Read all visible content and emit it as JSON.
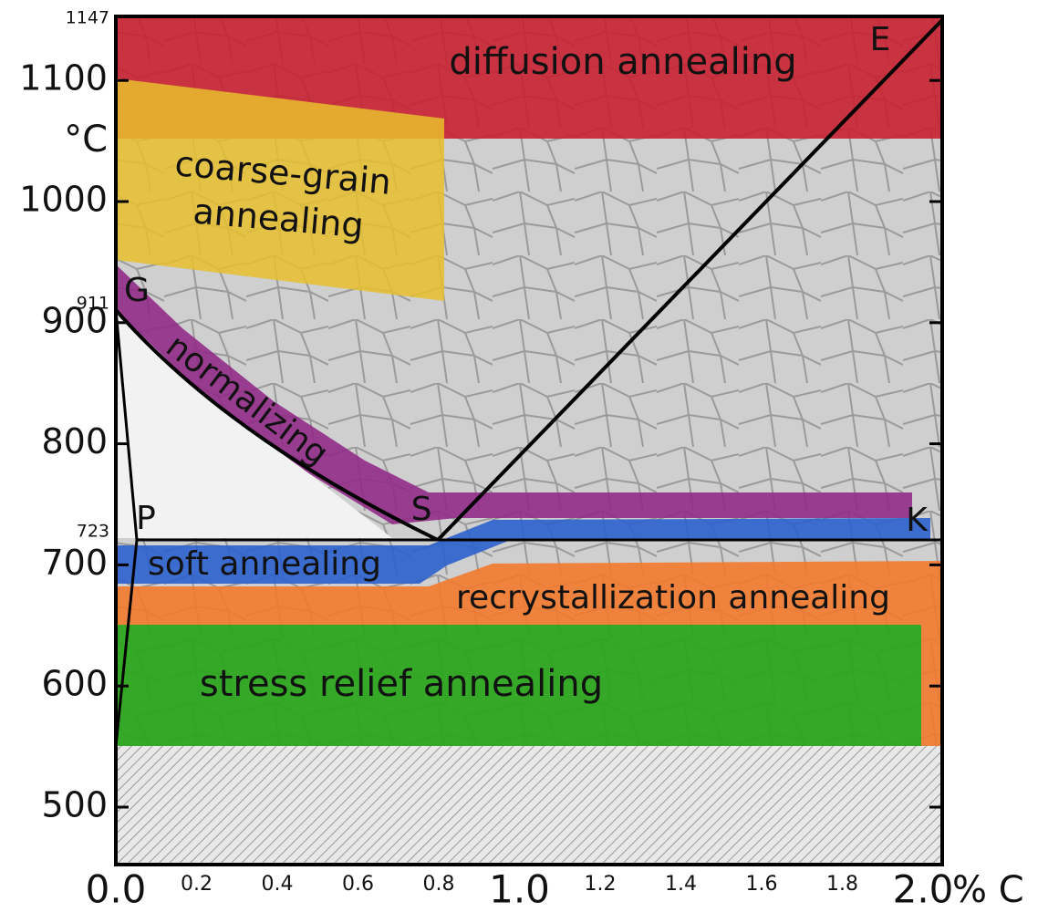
{
  "axes": {
    "y": {
      "ticks": [
        500,
        600,
        700,
        800,
        900,
        1000,
        1100
      ],
      "unit": "°C",
      "marked_temperatures": [
        1147,
        911,
        723
      ]
    },
    "x": {
      "ticks": [
        {
          "value": 0,
          "label": "0.0"
        },
        0.2,
        0.4,
        0.6,
        0.8,
        {
          "value": 1,
          "label": "1.0"
        },
        1.2,
        1.4,
        1.6,
        1.8,
        {
          "value": 2,
          "label": "2.0"
        }
      ],
      "unit": "% C"
    }
  },
  "regions": [
    {
      "label": "diffusion annealing"
    },
    {
      "label": [
        "coarse-grain",
        "annealing"
      ]
    },
    {
      "label": "normalizing"
    },
    {
      "label": "soft annealing"
    },
    {
      "label": "recrystallization annealing"
    },
    {
      "label": "stress relief annealing"
    }
  ],
  "points": [
    {
      "label": "E"
    },
    {
      "label": "G"
    },
    {
      "label": "S"
    },
    {
      "label": "P"
    },
    {
      "label": "K"
    }
  ]
}
